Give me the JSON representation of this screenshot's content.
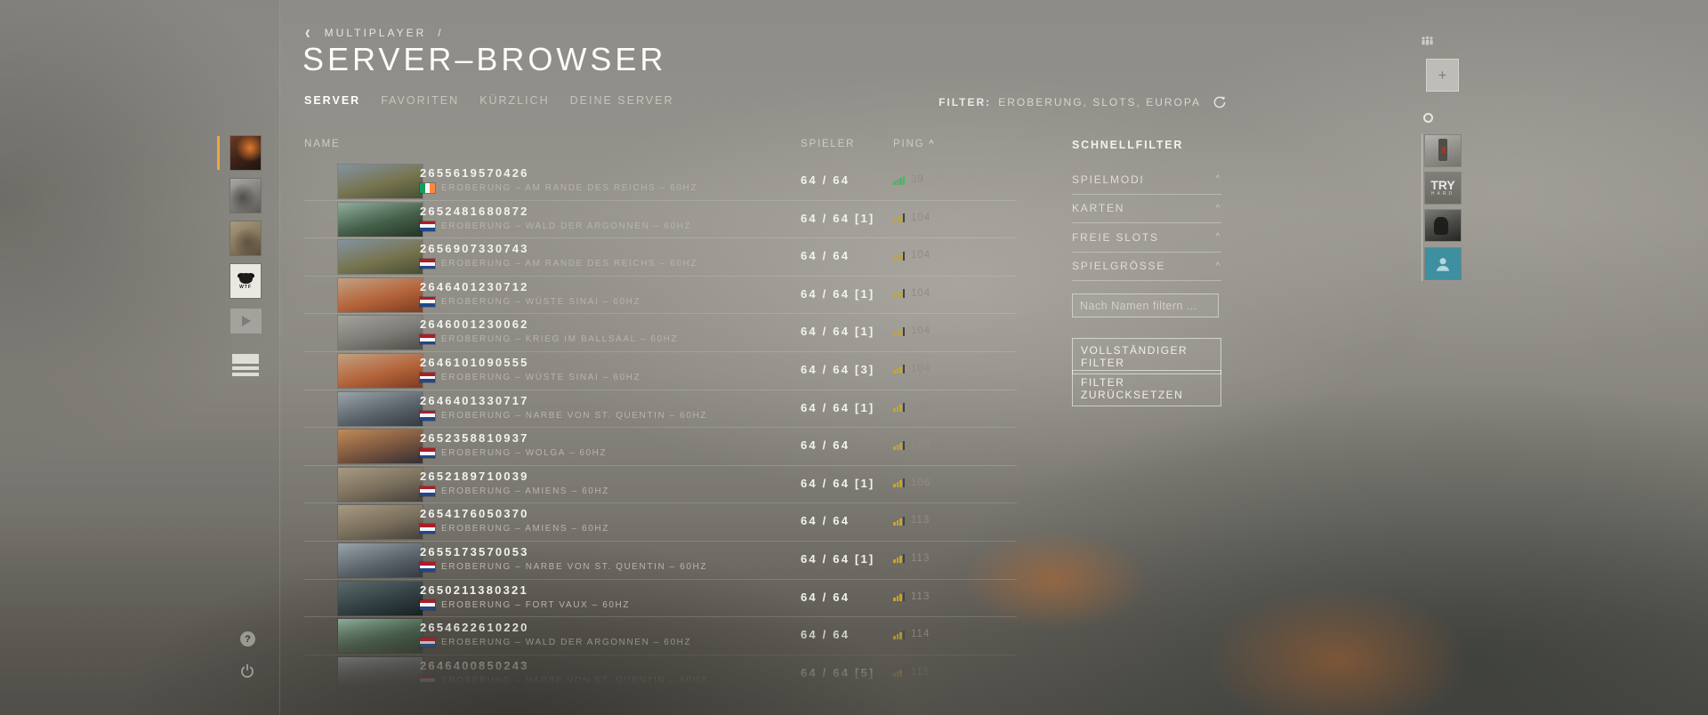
{
  "breadcrumb": {
    "chevron": "‹",
    "label": "MULTIPLAYER",
    "separator": "/"
  },
  "page_title": "SERVER–BROWSER",
  "tabs": [
    {
      "label": "SERVER",
      "active": true
    },
    {
      "label": "FAVORITEN",
      "active": false
    },
    {
      "label": "KÜRZLICH",
      "active": false
    },
    {
      "label": "DEINE SERVER",
      "active": false
    }
  ],
  "filter_bar": {
    "label": "FILTER:",
    "value": "EROBERUNG, SLOTS, EUROPA",
    "refresh_icon": "refresh-icon"
  },
  "table": {
    "columns": {
      "name": "NAME",
      "players": "SPIELER",
      "ping": "PING",
      "sort_indicator": "^"
    },
    "servers": [
      {
        "id": "2655619570426",
        "flag": "ie",
        "desc": "EROBERUNG – AM RANDE DES REICHS – 60HZ",
        "players": "64 / 64",
        "ping": "39",
        "quality": "good",
        "map": "reichs"
      },
      {
        "id": "2652481680872",
        "flag": "nl",
        "desc": "EROBERUNG – WALD DER ARGONNEN – 60HZ",
        "players": "64 / 64 [1]",
        "ping": "104",
        "quality": "warn",
        "map": "argonne"
      },
      {
        "id": "2656907330743",
        "flag": "nl",
        "desc": "EROBERUNG – AM RANDE DES REICHS – 60HZ",
        "players": "64 / 64",
        "ping": "104",
        "quality": "warn",
        "map": "reichs"
      },
      {
        "id": "2646401230712",
        "flag": "nl",
        "desc": "EROBERUNG – WÜSTE SINAI – 60HZ",
        "players": "64 / 64 [1]",
        "ping": "104",
        "quality": "warn",
        "map": "sinai"
      },
      {
        "id": "2646001230062",
        "flag": "nl",
        "desc": "EROBERUNG – KRIEG IM BALLSAAL – 60HZ",
        "players": "64 / 64 [1]",
        "ping": "104",
        "quality": "warn",
        "map": "ballroom"
      },
      {
        "id": "2646101090555",
        "flag": "nl",
        "desc": "EROBERUNG – WÜSTE SINAI – 60HZ",
        "players": "64 / 64 [3]",
        "ping": "104",
        "quality": "warn",
        "map": "sinai"
      },
      {
        "id": "2646401330717",
        "flag": "nl",
        "desc": "EROBERUNG – NARBE VON ST. QUENTIN – 60HZ",
        "players": "64 / 64 [1]",
        "ping": "104",
        "quality": "warn",
        "map": "quentin"
      },
      {
        "id": "2652358810937",
        "flag": "nl",
        "desc": "EROBERUNG – WOLGA – 60HZ",
        "players": "64 / 64",
        "ping": "105",
        "quality": "warn",
        "map": "volga"
      },
      {
        "id": "2652189710039",
        "flag": "nl",
        "desc": "EROBERUNG – AMIENS – 60HZ",
        "players": "64 / 64 [1]",
        "ping": "106",
        "quality": "warn",
        "map": "amiens"
      },
      {
        "id": "2654176050370",
        "flag": "nl",
        "desc": "EROBERUNG – AMIENS – 60HZ",
        "players": "64 / 64",
        "ping": "113",
        "quality": "warn",
        "map": "amiens"
      },
      {
        "id": "2655173570053",
        "flag": "nl",
        "desc": "EROBERUNG – NARBE VON ST. QUENTIN – 60HZ",
        "players": "64 / 64 [1]",
        "ping": "113",
        "quality": "warn",
        "map": "quentin"
      },
      {
        "id": "2650211380321",
        "flag": "nl",
        "desc": "EROBERUNG – FORT VAUX – 60HZ",
        "players": "64 / 64",
        "ping": "113",
        "quality": "warn",
        "map": "vaux"
      },
      {
        "id": "2654622610220",
        "flag": "nl",
        "desc": "EROBERUNG – WALD DER ARGONNEN – 60HZ",
        "players": "64 / 64",
        "ping": "114",
        "quality": "warn",
        "map": "argonne"
      },
      {
        "id": "2646400850243",
        "flag": "nl",
        "desc": "EROBERUNG – NARBE VON ST. QUENTIN – 60HZ",
        "players": "64 / 64 [5]",
        "ping": "115",
        "quality": "warn",
        "map": "quentin"
      }
    ]
  },
  "flags": {
    "ie": {
      "orientation": "vertical",
      "colors": [
        "#169b62",
        "#f5f5f5",
        "#ff883e"
      ]
    },
    "nl": {
      "orientation": "horizontal",
      "colors": [
        "#ae1c28",
        "#f5f5f5",
        "#21468b"
      ]
    }
  },
  "maps": {
    "reichs": [
      "#8293a0",
      "#77744f",
      "#474f33"
    ],
    "argonne": [
      "#8fae9d",
      "#45604a",
      "#243424"
    ],
    "sinai": [
      "#c2a183",
      "#b4643a",
      "#7c3c22"
    ],
    "ballroom": [
      "#a3a29c",
      "#7c7b75",
      "#4e4d48"
    ],
    "quentin": [
      "#9aa4ab",
      "#5c646c",
      "#343a41"
    ],
    "volga": [
      "#c28a55",
      "#79553f",
      "#332f33"
    ],
    "amiens": [
      "#a89a82",
      "#7a6f5c",
      "#46403a"
    ],
    "vaux": [
      "#5d6a6b",
      "#324044",
      "#17211f"
    ]
  },
  "ping_icon": {
    "good_color": "#45b860",
    "warn_color": "#c7a529",
    "off_color": "#44423a"
  },
  "quick_filter": {
    "title": "SCHNELLFILTER",
    "sections": [
      {
        "label": "SPIELMODI",
        "caret": "^"
      },
      {
        "label": "KARTEN",
        "caret": "^"
      },
      {
        "label": "FREIE SLOTS",
        "caret": "^"
      },
      {
        "label": "SPIELGRÖSSE",
        "caret": "^"
      }
    ],
    "name_filter": {
      "placeholder": "Nach Namen filtern ...",
      "value": ""
    },
    "full_filter_button": "VOLLSTÄNDIGER FILTER",
    "reset_filter_button": "FILTER ZURÜCKSETZEN"
  },
  "left_rail": {
    "avatar4_label": "WTF",
    "help_icon": "?",
    "icons": [
      "squad-avatar",
      "squad-avatar",
      "squad-avatar",
      "squad-avatar",
      "play-icon",
      "server-queue-icon",
      "help-icon",
      "power-icon"
    ]
  },
  "right_rail": {
    "try_thumb_line1": "TRY",
    "try_thumb_line2": "HARD",
    "icons": [
      "group-icon",
      "add-icon",
      "ring-indicator",
      "member-thumb",
      "member-thumb",
      "member-thumb",
      "member-thumb"
    ]
  }
}
